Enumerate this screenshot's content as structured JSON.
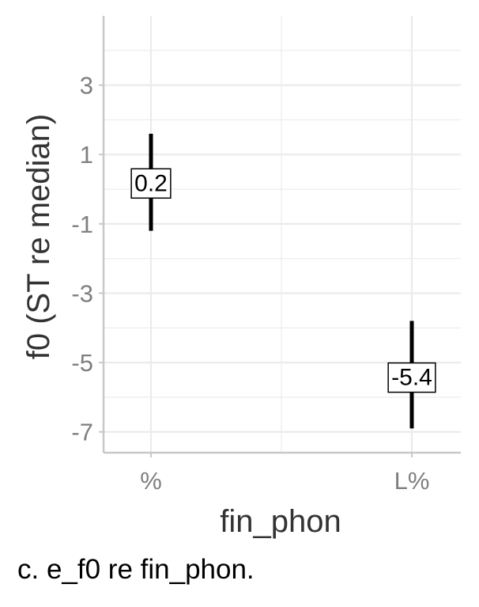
{
  "chart_data": {
    "type": "errorbar",
    "categories": [
      "%",
      "L%"
    ],
    "values": [
      0.2,
      -5.4
    ],
    "ci_low": [
      -1.2,
      -6.9
    ],
    "ci_high": [
      1.6,
      -3.8
    ],
    "labels": [
      "0.2",
      "-5.4"
    ],
    "xlabel": "fin_phon",
    "ylabel": "f0 (ST re median)",
    "yticks": [
      3,
      1,
      -1,
      -3,
      -5,
      -7
    ],
    "ylim": [
      -7.6,
      5.0
    ],
    "grid": true,
    "legend": "none"
  },
  "caption": "c.  e_f0 re fin_phon.",
  "colors": {
    "grid": "#ebebeb",
    "axis": "#c8c8c8",
    "mark": "#000000",
    "tick_text": "#7f7f7f",
    "title_text": "#333333"
  }
}
